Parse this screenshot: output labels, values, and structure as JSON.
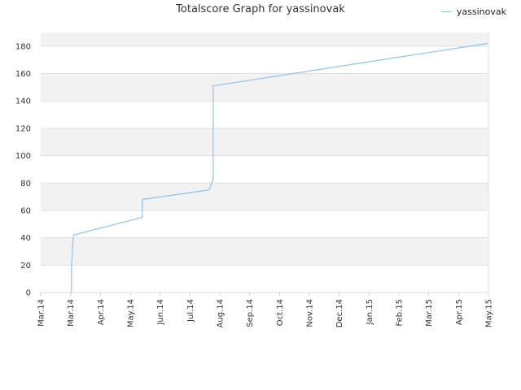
{
  "chart_data": {
    "type": "line",
    "title": "Totalscore Graph for yassinovak",
    "xlabel": "",
    "ylabel": "",
    "x_ticks": [
      "Mar.14",
      "Mar.14",
      "Apr.14",
      "May.14",
      "Jun.14",
      "Jul.14",
      "Aug.14",
      "Sep.14",
      "Oct.14",
      "Nov.14",
      "Dec.14",
      "Jan.15",
      "Feb.15",
      "Mar.15",
      "Apr.15",
      "May.15"
    ],
    "y_ticks": [
      0,
      20,
      40,
      60,
      80,
      100,
      120,
      140,
      160,
      180
    ],
    "ylim": [
      0,
      190
    ],
    "grid": true,
    "legend_position": "top-right",
    "series": [
      {
        "name": "yassinovak",
        "color": "#8ec3ee",
        "points": [
          [
            "2014-03-28",
            0
          ],
          [
            "2014-03-28",
            17
          ],
          [
            "2014-03-29",
            34
          ],
          [
            "2014-03-30",
            42
          ],
          [
            "2014-06-05",
            55
          ],
          [
            "2014-06-05",
            68
          ],
          [
            "2014-08-09",
            75
          ],
          [
            "2014-08-13",
            83
          ],
          [
            "2014-08-13",
            151
          ],
          [
            "2015-05-07",
            182
          ]
        ]
      }
    ]
  }
}
